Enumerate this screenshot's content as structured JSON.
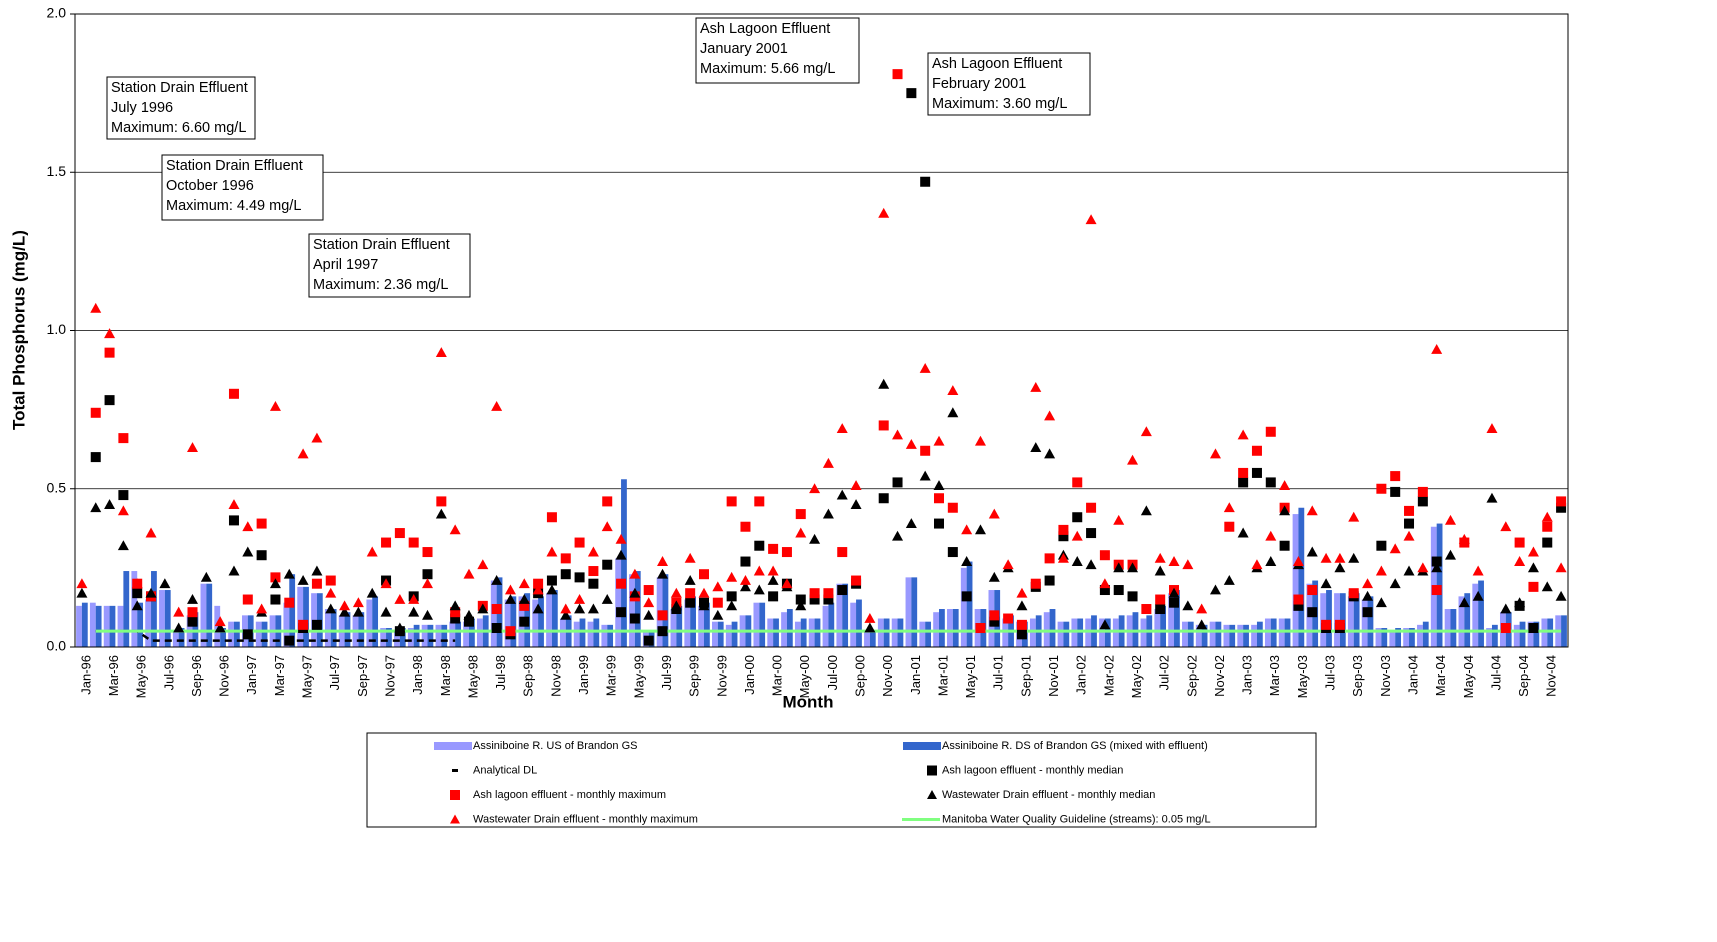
{
  "chart_data": {
    "type": "combo",
    "y_axis_label": "Total Phosphorus (mg/L)",
    "x_axis_label": "Month",
    "ylim": [
      0,
      2
    ],
    "yticks": [
      {
        "value": 0,
        "label": "0.0"
      },
      {
        "value": 0.5,
        "label": "0.5"
      },
      {
        "value": 1,
        "label": "1.0"
      },
      {
        "value": 1.5,
        "label": "1.5"
      },
      {
        "value": 2,
        "label": "2.0"
      }
    ],
    "grid": true,
    "categories": [
      "Jan-96",
      null,
      "Mar-96",
      null,
      "May-96",
      null,
      "Jul-96",
      null,
      "Sep-96",
      null,
      "Nov-96",
      null,
      "Jan-97",
      null,
      "Mar-97",
      null,
      "May-97",
      null,
      "Jul-97",
      null,
      "Sep-97",
      null,
      "Nov-97",
      null,
      "Jan-98",
      null,
      "Mar-98",
      null,
      "May-98",
      null,
      "Jul-98",
      null,
      "Sep-98",
      null,
      "Nov-98",
      null,
      "Jan-99",
      null,
      "Mar-99",
      null,
      "May-99",
      null,
      "Jul-99",
      null,
      "Sep-99",
      null,
      "Nov-99",
      null,
      "Jan-00",
      null,
      "Mar-00",
      null,
      "May-00",
      null,
      "Jul-00",
      null,
      "Sep-00",
      null,
      "Nov-00",
      null,
      "Jan-01",
      null,
      "Mar-01",
      null,
      "May-01",
      null,
      "Jul-01",
      null,
      "Sep-01",
      null,
      "Nov-01",
      null,
      "Jan-02",
      null,
      "Mar-02",
      null,
      "May-02",
      null,
      "Jul-02",
      null,
      "Sep-02",
      null,
      "Nov-02",
      null,
      "Jan-03",
      null,
      "Mar-03",
      null,
      "May-03",
      null,
      "Jul-03",
      null,
      "Sep-03",
      null,
      "Nov-03",
      null,
      "Jan-04",
      null,
      "Mar-04",
      null,
      "May-04",
      null,
      "Jul-04",
      null,
      "Sep-04",
      null,
      "Nov-04",
      null
    ],
    "series": [
      {
        "name": "Assiniboine R. US of Brandon GS",
        "type": "bar",
        "color": "#9999ff",
        "values": [
          0.13,
          0.14,
          0.13,
          0.13,
          0.24,
          0.15,
          0.18,
          0.05,
          0.1,
          0.2,
          0.13,
          0.08,
          0.1,
          0.08,
          0.1,
          0.14,
          0.19,
          0.17,
          0.12,
          0.1,
          0.1,
          0.15,
          0.06,
          0.05,
          0.06,
          0.07,
          0.07,
          0.08,
          0.08,
          0.09,
          0.21,
          0.15,
          0.16,
          0.15,
          0.17,
          0.09,
          0.08,
          0.08,
          0.07,
          0.28,
          0.23,
          0.05,
          0.22,
          0.12,
          0.15,
          0.13,
          0.08,
          0.07,
          0.1,
          0.14,
          0.09,
          0.11,
          0.08,
          0.09,
          0.13,
          0.2,
          0.14,
          0.05,
          0.09,
          0.09,
          0.22,
          0.08,
          0.11,
          0.12,
          0.25,
          0.12,
          0.18,
          0.09,
          0.08,
          0.09,
          0.11,
          0.08,
          0.09,
          0.09,
          0.09,
          0.09,
          0.1,
          0.09,
          0.12,
          0.17,
          0.08,
          0.07,
          0.08,
          0.07,
          0.07,
          0.07,
          0.09,
          0.09,
          0.42,
          0.2,
          0.17,
          0.17,
          0.16,
          0.15,
          0.06,
          0.05,
          0.06,
          0.07,
          0.38,
          0.12,
          0.16,
          0.2,
          0.06,
          0.11,
          0.07,
          0.08,
          0.09,
          0.1
        ]
      },
      {
        "name": "Assiniboine R. DS of Brandon GS (mixed with effluent)",
        "type": "bar",
        "color": "#3366cc",
        "values": [
          0.14,
          0.13,
          0.13,
          0.24,
          0.14,
          0.24,
          0.18,
          0.06,
          0.11,
          0.2,
          0.06,
          0.08,
          0.1,
          0.08,
          0.1,
          0.23,
          0.19,
          0.17,
          0.12,
          0.11,
          0.11,
          0.16,
          0.06,
          0.06,
          0.07,
          0.07,
          0.07,
          0.08,
          0.09,
          0.1,
          0.22,
          0.16,
          0.17,
          0.16,
          0.18,
          0.1,
          0.09,
          0.09,
          0.07,
          0.53,
          0.24,
          0.05,
          0.23,
          0.13,
          0.16,
          0.14,
          0.08,
          0.08,
          0.1,
          0.14,
          0.09,
          0.12,
          0.09,
          0.09,
          0.14,
          0.2,
          0.15,
          0.05,
          0.09,
          0.09,
          0.22,
          0.08,
          0.12,
          0.12,
          0.27,
          0.12,
          0.18,
          0.1,
          0.08,
          0.1,
          0.12,
          0.08,
          0.09,
          0.1,
          0.09,
          0.1,
          0.11,
          0.1,
          0.13,
          0.18,
          0.08,
          0.07,
          0.08,
          0.07,
          0.07,
          0.08,
          0.09,
          0.09,
          0.44,
          0.21,
          0.18,
          0.17,
          0.17,
          0.16,
          0.06,
          0.06,
          0.06,
          0.08,
          0.39,
          0.12,
          0.17,
          0.21,
          0.07,
          0.11,
          0.08,
          0.08,
          0.09,
          0.1
        ]
      },
      {
        "name": "Analytical DL",
        "type": "line",
        "dashed": true,
        "color": "#000000",
        "values": [
          null,
          0.05,
          0.05,
          0.05,
          0.05,
          0.02,
          0.02,
          0.02,
          0.02,
          0.02,
          0.02,
          0.02,
          0.02,
          0.02,
          0.02,
          0.02,
          0.02,
          0.02,
          0.02,
          0.02,
          0.02,
          0.02,
          0.02,
          0.02,
          0.02,
          0.02,
          0.02,
          0.02,
          null,
          null,
          null,
          null,
          null,
          null,
          null,
          null,
          null,
          null,
          null,
          null,
          null,
          null,
          null,
          null,
          null,
          null,
          null,
          null,
          null,
          null,
          null,
          null,
          null,
          null,
          null,
          null,
          null,
          null,
          null,
          null,
          null,
          null,
          null,
          null,
          null,
          null,
          null,
          null,
          null,
          null,
          null,
          null,
          null,
          null,
          null,
          null,
          null,
          null,
          null,
          null,
          null,
          null,
          null,
          null,
          null,
          null,
          null,
          null,
          null,
          null,
          null,
          null,
          null,
          null,
          null,
          null,
          null,
          null,
          null,
          null,
          null,
          null,
          null,
          null,
          null,
          null,
          null,
          null
        ]
      },
      {
        "name": "Ash lagoon effluent - monthly median",
        "type": "square",
        "color": "#000000",
        "values": [
          null,
          0.6,
          0.78,
          0.48,
          0.17,
          0.16,
          null,
          null,
          0.08,
          null,
          null,
          0.4,
          0.04,
          0.29,
          0.15,
          0.02,
          0.06,
          0.07,
          null,
          null,
          null,
          null,
          0.21,
          0.05,
          0.16,
          0.23,
          null,
          0.09,
          0.08,
          null,
          0.06,
          0.04,
          0.08,
          0.17,
          0.21,
          0.23,
          0.22,
          0.2,
          0.26,
          0.11,
          0.09,
          0.02,
          0.05,
          0.12,
          0.14,
          0.14,
          null,
          0.16,
          0.27,
          0.32,
          0.16,
          0.2,
          0.15,
          0.15,
          0.15,
          0.18,
          0.2,
          null,
          0.47,
          0.52,
          1.75,
          1.47,
          0.39,
          0.3,
          0.16,
          0.06,
          0.08,
          null,
          0.04,
          0.19,
          0.21,
          0.35,
          0.41,
          0.36,
          0.18,
          0.18,
          0.16,
          null,
          0.12,
          0.14,
          null,
          null,
          null,
          null,
          0.52,
          0.55,
          0.52,
          0.32,
          0.13,
          0.11,
          0.06,
          0.06,
          0.16,
          0.11,
          0.32,
          0.49,
          0.39,
          0.46,
          0.27,
          null,
          null,
          null,
          null,
          null,
          0.13,
          0.06,
          0.33,
          0.44
        ]
      },
      {
        "name": "Ash lagoon effluent - monthly maximum",
        "type": "square",
        "color": "#ff0000",
        "values": [
          null,
          0.74,
          0.93,
          0.66,
          0.2,
          0.16,
          null,
          null,
          0.11,
          null,
          null,
          0.8,
          0.15,
          0.39,
          0.22,
          0.14,
          0.07,
          0.2,
          0.21,
          null,
          null,
          null,
          0.33,
          0.36,
          0.33,
          0.3,
          0.46,
          0.11,
          null,
          0.13,
          0.12,
          0.05,
          0.13,
          0.2,
          0.41,
          0.28,
          0.33,
          0.24,
          0.46,
          0.2,
          0.16,
          0.18,
          0.1,
          0.14,
          0.17,
          0.23,
          0.14,
          0.46,
          0.38,
          0.46,
          0.31,
          0.3,
          0.42,
          0.17,
          0.17,
          0.3,
          0.21,
          null,
          0.7,
          1.81,
          null,
          0.62,
          0.47,
          0.44,
          null,
          0.06,
          0.1,
          0.09,
          0.07,
          0.2,
          0.28,
          0.37,
          0.52,
          0.44,
          0.29,
          0.26,
          0.26,
          0.12,
          0.15,
          0.18,
          null,
          null,
          null,
          0.38,
          0.55,
          0.62,
          0.68,
          0.44,
          0.15,
          0.18,
          0.07,
          0.07,
          0.17,
          null,
          0.5,
          0.54,
          0.43,
          0.49,
          0.18,
          null,
          0.33,
          null,
          null,
          0.06,
          0.33,
          0.19,
          0.38,
          0.46
        ]
      },
      {
        "name": "Wastewater Drain effluent - monthly median",
        "type": "triangle",
        "color": "#000000",
        "values": [
          0.17,
          0.44,
          0.45,
          0.32,
          0.13,
          0.17,
          0.2,
          0.06,
          0.15,
          0.22,
          0.06,
          0.24,
          0.3,
          0.11,
          0.2,
          0.23,
          0.21,
          0.24,
          0.12,
          0.11,
          0.11,
          0.17,
          0.11,
          0.06,
          0.11,
          0.1,
          0.42,
          0.13,
          0.1,
          0.12,
          0.21,
          0.15,
          0.15,
          0.12,
          0.18,
          0.1,
          0.12,
          0.12,
          0.15,
          0.29,
          0.17,
          0.1,
          0.23,
          0.13,
          0.21,
          0.13,
          0.1,
          0.13,
          0.19,
          0.18,
          0.21,
          0.19,
          0.13,
          0.34,
          0.42,
          0.48,
          0.45,
          0.06,
          0.83,
          0.35,
          0.39,
          0.54,
          0.51,
          0.74,
          0.27,
          0.37,
          0.22,
          0.25,
          0.13,
          0.63,
          0.61,
          0.29,
          0.27,
          0.26,
          0.07,
          0.25,
          0.25,
          0.43,
          0.24,
          0.17,
          0.13,
          0.07,
          0.18,
          0.21,
          0.36,
          0.25,
          0.27,
          0.43,
          0.26,
          0.3,
          0.2,
          0.25,
          0.28,
          0.16,
          0.14,
          0.2,
          0.24,
          0.24,
          0.25,
          0.29,
          0.14,
          0.16,
          0.47,
          0.12,
          0.14,
          0.25,
          0.19,
          0.16
        ]
      },
      {
        "name": "Wastewater Drain effluent - monthly maximum",
        "type": "triangle",
        "color": "#ff0000",
        "values": [
          0.2,
          1.07,
          0.99,
          0.43,
          0.2,
          0.36,
          null,
          0.11,
          0.63,
          null,
          0.08,
          0.45,
          0.38,
          0.12,
          0.76,
          null,
          0.61,
          0.66,
          0.17,
          0.13,
          0.14,
          0.3,
          0.2,
          0.15,
          0.15,
          0.2,
          0.93,
          0.37,
          0.23,
          0.26,
          0.76,
          0.18,
          0.2,
          0.18,
          0.3,
          0.12,
          0.15,
          0.3,
          0.38,
          0.34,
          0.23,
          0.14,
          0.27,
          0.17,
          0.28,
          0.17,
          0.19,
          0.22,
          0.21,
          0.24,
          0.24,
          0.2,
          0.36,
          0.5,
          0.58,
          0.69,
          0.51,
          0.09,
          1.37,
          0.67,
          0.64,
          0.88,
          0.65,
          0.81,
          0.37,
          0.65,
          0.42,
          0.26,
          0.17,
          0.82,
          0.73,
          0.28,
          0.35,
          1.35,
          0.2,
          0.4,
          0.59,
          0.68,
          0.28,
          0.27,
          0.26,
          0.12,
          0.61,
          0.44,
          0.67,
          0.26,
          0.35,
          0.51,
          0.27,
          0.43,
          0.28,
          0.28,
          0.41,
          0.2,
          0.24,
          0.31,
          0.35,
          0.25,
          0.94,
          0.4,
          0.34,
          0.24,
          0.69,
          0.38,
          0.27,
          0.3,
          0.41,
          0.25
        ]
      },
      {
        "name": "Manitoba Water Quality Guideline (streams): 0.05 mg/L",
        "type": "line",
        "color": "#80ff80",
        "values": [
          null,
          0.05,
          0.05,
          0.05,
          0.05,
          0.05,
          0.05,
          0.05,
          0.05,
          0.05,
          0.05,
          0.05,
          0.05,
          0.05,
          0.05,
          0.05,
          0.05,
          0.05,
          0.05,
          0.05,
          0.05,
          0.05,
          0.05,
          0.05,
          0.05,
          0.05,
          0.05,
          0.05,
          0.05,
          0.05,
          0.05,
          0.05,
          0.05,
          0.05,
          0.05,
          0.05,
          0.05,
          0.05,
          0.05,
          0.05,
          0.05,
          0.05,
          0.05,
          0.05,
          0.05,
          0.05,
          0.05,
          0.05,
          0.05,
          0.05,
          0.05,
          0.05,
          0.05,
          0.05,
          0.05,
          0.05,
          0.05,
          0.05,
          0.05,
          0.05,
          0.05,
          0.05,
          0.05,
          0.05,
          0.05,
          0.05,
          0.05,
          0.05,
          0.05,
          0.05,
          0.05,
          0.05,
          0.05,
          0.05,
          0.05,
          0.05,
          0.05,
          0.05,
          0.05,
          0.05,
          0.05,
          0.05,
          0.05,
          0.05,
          0.05,
          0.05,
          0.05,
          0.05,
          0.05,
          0.05,
          0.05,
          0.05,
          0.05,
          0.05,
          0.05,
          0.05,
          0.05,
          0.05,
          0.05,
          0.05,
          0.05,
          0.05,
          0.05,
          0.05,
          0.05,
          0.05,
          0.05,
          0.05
        ]
      }
    ],
    "annotations": [
      {
        "lines": [
          "Station Drain Effluent",
          "July 1996",
          "Maximum:  6.60 mg/L"
        ]
      },
      {
        "lines": [
          "Station Drain Effluent",
          "October 1996",
          "Maximum:  4.49 mg/L"
        ]
      },
      {
        "lines": [
          "Station Drain Effluent",
          "April 1997",
          "Maximum:  2.36 mg/L"
        ]
      },
      {
        "lines": [
          "Ash Lagoon Effluent",
          "January 2001",
          "Maximum:  5.66 mg/L"
        ]
      },
      {
        "lines": [
          "Ash Lagoon Effluent",
          "February 2001",
          "Maximum:  3.60 mg/L"
        ]
      }
    ]
  }
}
